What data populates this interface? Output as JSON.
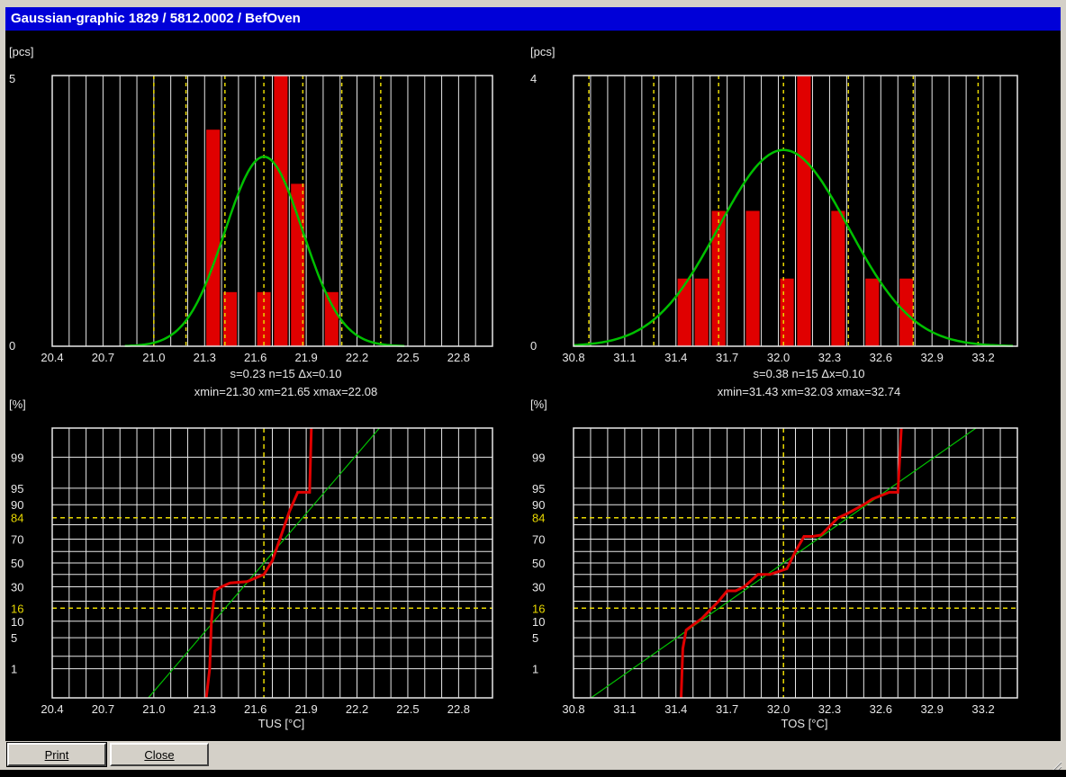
{
  "window": {
    "title": "Gaussian-graphic  1829 / 5812.0002 / BefOven"
  },
  "buttons": {
    "print": "Print",
    "close": "Close"
  },
  "colors": {
    "bar": "#e00000",
    "gauss": "#00c000",
    "marker": "#e8d800",
    "grid": "#e8e8e8",
    "label_highlight": "#e8d800"
  },
  "chart_data": [
    {
      "type": "bar",
      "ylabel": "[pcs]",
      "ymax_label": "5",
      "ymin_label": "0",
      "ylim": [
        0,
        5
      ],
      "xlim": [
        20.4,
        23.0
      ],
      "xticks": [
        20.4,
        20.7,
        21.0,
        21.3,
        21.6,
        21.9,
        22.2,
        22.5,
        22.8
      ],
      "xtick_labels": [
        "20.4",
        "20.7",
        "21.0",
        "21.3",
        "21.6",
        "21.9",
        "22.2",
        "22.5",
        "22.8"
      ],
      "bin_width": 0.1,
      "bars": [
        {
          "x": 21.35,
          "count": 4
        },
        {
          "x": 21.45,
          "count": 1
        },
        {
          "x": 21.65,
          "count": 1
        },
        {
          "x": 21.75,
          "count": 5
        },
        {
          "x": 21.85,
          "count": 3
        },
        {
          "x": 22.05,
          "count": 1
        }
      ],
      "gauss": {
        "mean": 21.65,
        "sd": 0.23,
        "peak": 3.5
      },
      "sigma_lines": [
        21.0,
        21.19,
        21.42,
        21.65,
        21.88,
        22.11,
        22.34
      ],
      "stats_line1": "s=0.23  n=15  Δx=0.10",
      "stats_line2": "xmin=21.30  xm=21.65  xmax=22.08"
    },
    {
      "type": "bar",
      "ylabel": "[pcs]",
      "ymax_label": "4",
      "ymin_label": "0",
      "ylim": [
        0,
        4
      ],
      "xlim": [
        30.8,
        33.4
      ],
      "xticks": [
        30.8,
        31.1,
        31.4,
        31.7,
        32.0,
        32.3,
        32.6,
        32.9,
        33.2
      ],
      "xtick_labels": [
        "30.8",
        "31.1",
        "31.4",
        "31.7",
        "32.0",
        "32.3",
        "32.6",
        "32.9",
        "33.2"
      ],
      "bin_width": 0.1,
      "bars": [
        {
          "x": 31.45,
          "count": 1
        },
        {
          "x": 31.55,
          "count": 1
        },
        {
          "x": 31.65,
          "count": 2
        },
        {
          "x": 31.85,
          "count": 2
        },
        {
          "x": 32.05,
          "count": 1
        },
        {
          "x": 32.15,
          "count": 4
        },
        {
          "x": 32.35,
          "count": 2
        },
        {
          "x": 32.55,
          "count": 1
        },
        {
          "x": 32.75,
          "count": 1
        }
      ],
      "gauss": {
        "mean": 32.03,
        "sd": 0.38,
        "peak": 2.9
      },
      "sigma_lines": [
        30.89,
        31.27,
        31.65,
        32.03,
        32.41,
        32.79,
        33.17
      ],
      "stats_line1": "s=0.38  n=15  Δx=0.10",
      "stats_line2": "xmin=31.43  xm=32.03  xmax=32.74"
    },
    {
      "type": "line",
      "ylabel": "[%]",
      "xlabel": "TUS [°C]",
      "xlim": [
        20.4,
        23.0
      ],
      "xticks": [
        20.4,
        20.7,
        21.0,
        21.3,
        21.6,
        21.9,
        22.2,
        22.5,
        22.8
      ],
      "xtick_labels": [
        "20.4",
        "20.7",
        "21.0",
        "21.3",
        "21.6",
        "21.9",
        "22.2",
        "22.5",
        "22.8"
      ],
      "ytick_values": [
        1,
        5,
        10,
        16,
        30,
        50,
        70,
        84,
        90,
        95,
        99
      ],
      "ytick_labels": [
        "1",
        "5",
        "10",
        "16",
        "30",
        "50",
        "70",
        "84",
        "90",
        "95",
        "99"
      ],
      "highlight_labels": [
        "16",
        "84"
      ],
      "mean": 21.65,
      "sd": 0.23,
      "cdf": [
        [
          21.31,
          0.15
        ],
        [
          21.33,
          1
        ],
        [
          21.34,
          10
        ],
        [
          21.36,
          27
        ],
        [
          21.4,
          30
        ],
        [
          21.45,
          33
        ],
        [
          21.55,
          34
        ],
        [
          21.6,
          37
        ],
        [
          21.65,
          40
        ],
        [
          21.7,
          52
        ],
        [
          21.75,
          72
        ],
        [
          21.8,
          87
        ],
        [
          21.85,
          94
        ],
        [
          21.92,
          94
        ],
        [
          21.93,
          99.85
        ]
      ]
    },
    {
      "type": "line",
      "ylabel": "[%]",
      "xlabel": "TOS [°C]",
      "xlim": [
        30.8,
        33.4
      ],
      "xticks": [
        30.8,
        31.1,
        31.4,
        31.7,
        32.0,
        32.3,
        32.6,
        32.9,
        33.2
      ],
      "xtick_labels": [
        "30.8",
        "31.1",
        "31.4",
        "31.7",
        "32.0",
        "32.3",
        "32.6",
        "32.9",
        "33.2"
      ],
      "ytick_values": [
        1,
        5,
        10,
        16,
        30,
        50,
        70,
        84,
        90,
        95,
        99
      ],
      "ytick_labels": [
        "1",
        "5",
        "10",
        "16",
        "30",
        "50",
        "70",
        "84",
        "90",
        "95",
        "99"
      ],
      "highlight_labels": [
        "16",
        "84"
      ],
      "mean": 32.03,
      "sd": 0.38,
      "cdf": [
        [
          31.43,
          0.15
        ],
        [
          31.44,
          3
        ],
        [
          31.46,
          7
        ],
        [
          31.55,
          11
        ],
        [
          31.65,
          20
        ],
        [
          31.7,
          27
        ],
        [
          31.75,
          27
        ],
        [
          31.8,
          30
        ],
        [
          31.88,
          40
        ],
        [
          31.95,
          40
        ],
        [
          32.05,
          45
        ],
        [
          32.1,
          60
        ],
        [
          32.15,
          72
        ],
        [
          32.2,
          72
        ],
        [
          32.25,
          73
        ],
        [
          32.35,
          84
        ],
        [
          32.4,
          86
        ],
        [
          32.5,
          90
        ],
        [
          32.55,
          92
        ],
        [
          32.65,
          94
        ],
        [
          32.7,
          94
        ],
        [
          32.72,
          99.85
        ]
      ]
    }
  ]
}
